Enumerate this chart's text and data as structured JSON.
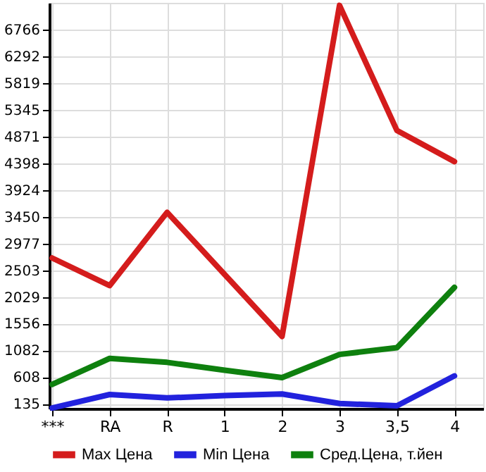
{
  "chart_data": {
    "type": "line",
    "categories": [
      "***",
      "RA",
      "R",
      "1",
      "2",
      "3",
      "3,5",
      "4"
    ],
    "series": [
      {
        "name": "Max Цена",
        "color": "#d41c1c",
        "values": [
          2720,
          2230,
          3530,
          2430,
          1330,
          7200,
          4980,
          4430
        ]
      },
      {
        "name": "Min Цена",
        "color": "#2222dd",
        "values": [
          60,
          300,
          240,
          280,
          310,
          140,
          100,
          630
        ]
      },
      {
        "name": "Сред.Цена, т.йен",
        "color": "#0e800e",
        "values": [
          480,
          940,
          870,
          730,
          600,
          1010,
          1130,
          2200
        ]
      }
    ],
    "ylim": [
      50,
      7245
    ],
    "yticks": [
      135,
      608,
      1082,
      1556,
      2029,
      2503,
      2977,
      3450,
      3924,
      4398,
      4871,
      5345,
      5819,
      6292,
      6766
    ],
    "grid": true,
    "legend": "bottom",
    "marker": "none",
    "line_style": "solid"
  }
}
